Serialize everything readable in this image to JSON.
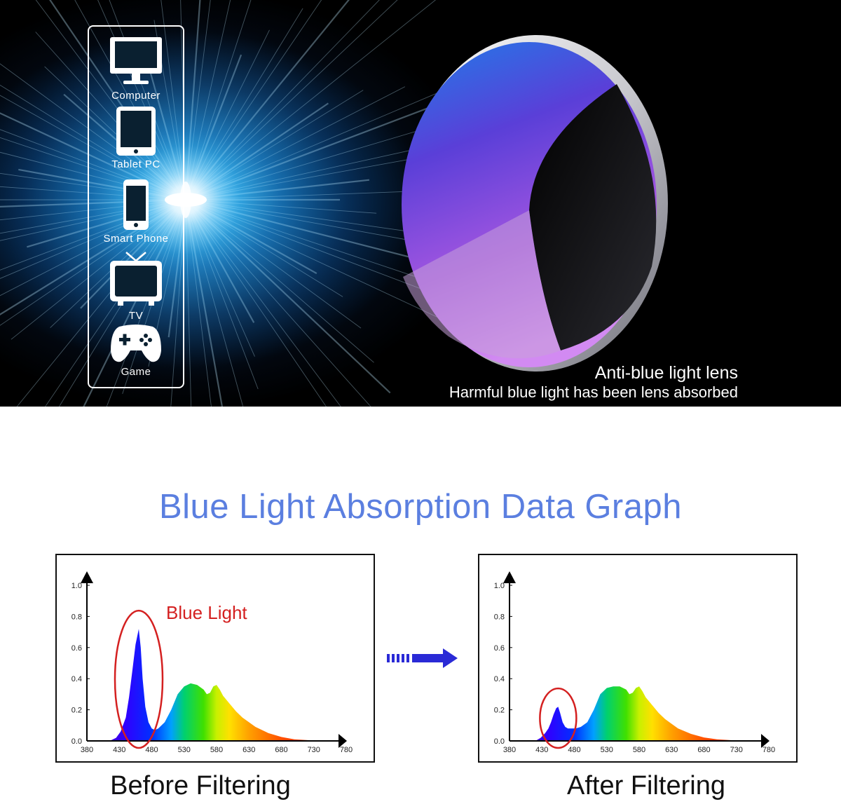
{
  "devices": [
    {
      "label": "Computer",
      "icon": "monitor-icon"
    },
    {
      "label": "Tablet PC",
      "icon": "tablet-icon"
    },
    {
      "label": "Smart Phone",
      "icon": "phone-icon"
    },
    {
      "label": "TV",
      "icon": "tv-icon"
    },
    {
      "label": "Game",
      "icon": "gamepad-icon"
    }
  ],
  "lens": {
    "title": "Anti-blue light lens",
    "subtitle": "Harmful blue light has been lens absorbed"
  },
  "graph_title": "Blue Light Absorption Data Graph",
  "colors": {
    "title": "#5b7fe0",
    "highlight": "#d42020",
    "arrow": "#2a2ad6"
  },
  "chart_data": [
    {
      "type": "area",
      "caption": "Before Filtering",
      "annotation": "Blue Light",
      "x_ticks": [
        "380",
        "430",
        "480",
        "530",
        "580",
        "630",
        "680",
        "730",
        "780"
      ],
      "y_ticks": [
        "0.0",
        "0.2",
        "0.4",
        "0.6",
        "0.8",
        "1.0"
      ],
      "xlim": [
        380,
        780
      ],
      "ylim": [
        0,
        1.0
      ],
      "x": [
        415,
        425,
        432,
        440,
        445,
        450,
        455,
        460,
        463,
        466,
        470,
        475,
        480,
        485,
        490,
        500,
        510,
        520,
        530,
        540,
        550,
        560,
        565,
        570,
        575,
        580,
        585,
        590,
        600,
        610,
        620,
        630,
        640,
        660,
        680,
        700,
        720,
        740,
        760
      ],
      "y": [
        0,
        0.02,
        0.06,
        0.15,
        0.28,
        0.45,
        0.62,
        0.72,
        0.6,
        0.4,
        0.22,
        0.12,
        0.08,
        0.07,
        0.08,
        0.12,
        0.2,
        0.3,
        0.35,
        0.37,
        0.36,
        0.33,
        0.3,
        0.31,
        0.35,
        0.36,
        0.33,
        0.29,
        0.24,
        0.19,
        0.15,
        0.12,
        0.09,
        0.05,
        0.025,
        0.01,
        0.005,
        0.002,
        0
      ]
    },
    {
      "type": "area",
      "caption": "After Filtering",
      "annotation": "",
      "x_ticks": [
        "380",
        "430",
        "480",
        "530",
        "580",
        "630",
        "680",
        "730",
        "780"
      ],
      "y_ticks": [
        "0.0",
        "0.2",
        "0.4",
        "0.6",
        "0.8",
        "1.0"
      ],
      "xlim": [
        380,
        780
      ],
      "ylim": [
        0,
        1.0
      ],
      "x": [
        420,
        428,
        435,
        440,
        444,
        448,
        452,
        455,
        458,
        462,
        466,
        470,
        476,
        482,
        490,
        500,
        510,
        520,
        530,
        540,
        550,
        560,
        565,
        570,
        575,
        580,
        585,
        590,
        600,
        610,
        620,
        630,
        640,
        660,
        680,
        700,
        720,
        740,
        760
      ],
      "y": [
        0,
        0.02,
        0.05,
        0.08,
        0.12,
        0.17,
        0.21,
        0.22,
        0.18,
        0.12,
        0.09,
        0.08,
        0.08,
        0.08,
        0.09,
        0.12,
        0.2,
        0.3,
        0.34,
        0.35,
        0.35,
        0.33,
        0.3,
        0.31,
        0.34,
        0.35,
        0.32,
        0.28,
        0.23,
        0.18,
        0.14,
        0.11,
        0.08,
        0.045,
        0.022,
        0.01,
        0.005,
        0.002,
        0
      ]
    }
  ]
}
